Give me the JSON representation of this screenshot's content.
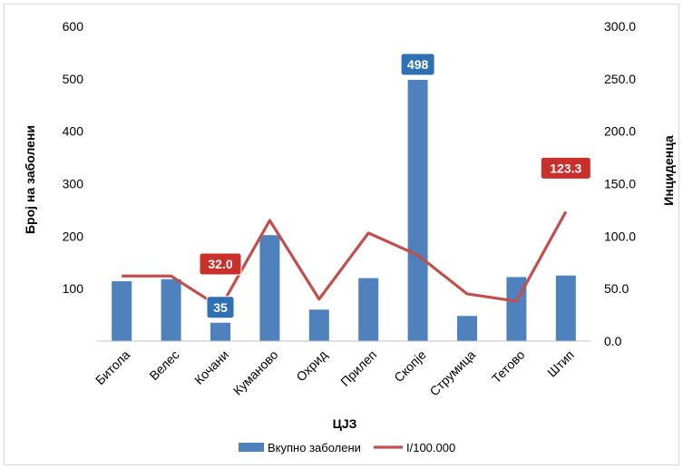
{
  "chart_data": {
    "type": "bar",
    "categories": [
      "Битола",
      "Велес",
      "Кочани",
      "Куманово",
      "Охрид",
      "Прилеп",
      "Скопје",
      "Струмица",
      "Тетово",
      "Штип"
    ],
    "series": [
      {
        "name": "Вкупно заболени",
        "type": "bar",
        "axis": "left",
        "color": "#4f81bd",
        "values": [
          114,
          118,
          35,
          202,
          60,
          120,
          498,
          48,
          122,
          125
        ]
      },
      {
        "name": "I/100.000",
        "type": "line",
        "axis": "right",
        "color": "#c0504d",
        "values": [
          62.0,
          62.0,
          32.0,
          115.0,
          40.0,
          103.0,
          82.0,
          45.0,
          38.0,
          123.3
        ]
      }
    ],
    "annotations": [
      {
        "series": 0,
        "index": 2,
        "text": "35",
        "fill": "#2f6fb3"
      },
      {
        "series": 0,
        "index": 6,
        "text": "498",
        "fill": "#2f6fb3"
      },
      {
        "series": 1,
        "index": 2,
        "text": "32.0",
        "fill": "#c9302c"
      },
      {
        "series": 1,
        "index": 9,
        "text": "123.3",
        "fill": "#c9302c"
      }
    ],
    "xlabel": "ЦЈЗ",
    "ylabel": "Број на заболени",
    "y2label": "Инциденца",
    "ylim": [
      0,
      600
    ],
    "y2lim": [
      0,
      300
    ],
    "yticks": [
      "100",
      "200",
      "300",
      "400",
      "500",
      "600"
    ],
    "y2ticks": [
      "0.0",
      "50.0",
      "100.0",
      "150.0",
      "200.0",
      "250.0",
      "300.0"
    ],
    "grid": false,
    "legend_position": "bottom"
  }
}
